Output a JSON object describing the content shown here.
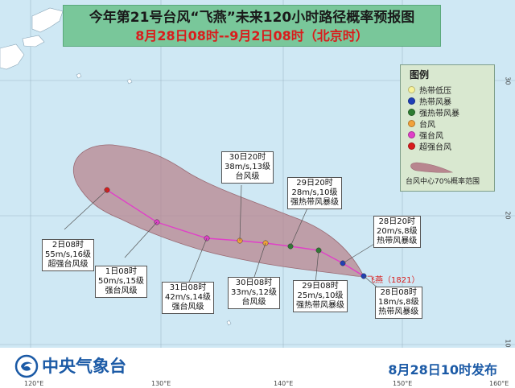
{
  "title": {
    "line1": "今年第21号台风“飞燕”未来120小时路径概率预报图",
    "line2": "8月28日08时--9月2日08时（北京时）"
  },
  "legend": {
    "title": "图例",
    "items": [
      {
        "label": "热带低压",
        "color": "#f7f29a"
      },
      {
        "label": "热带风暴",
        "color": "#1f3fb8"
      },
      {
        "label": "强热带风暴",
        "color": "#2e7d32"
      },
      {
        "label": "台风",
        "color": "#f2a23a"
      },
      {
        "label": "强台风",
        "color": "#e040c8"
      },
      {
        "label": "超强台风",
        "color": "#d91c1c"
      }
    ],
    "probability_label": "台风中心70%概率范围",
    "probability_color": "#b8868f"
  },
  "typhoon": {
    "name": "飞燕（1821）",
    "track_color": "#e040c8"
  },
  "forecast_points": [
    {
      "time": "28日08时",
      "speed": "18m/s,8级",
      "category": "热带风暴级",
      "color": "#1f3fb8"
    },
    {
      "time": "28日20时",
      "speed": "20m/s,8级",
      "category": "热带风暴级",
      "color": "#1f3fb8"
    },
    {
      "time": "29日08时",
      "speed": "25m/s,10级",
      "category": "强热带风暴级",
      "color": "#2e7d32"
    },
    {
      "time": "29日20时",
      "speed": "28m/s,10级",
      "category": "强热带风暴级",
      "color": "#2e7d32"
    },
    {
      "time": "30日08时",
      "speed": "33m/s,12级",
      "category": "台风级",
      "color": "#f2a23a"
    },
    {
      "time": "30日20时",
      "speed": "38m/s,13级",
      "category": "台风级",
      "color": "#f2a23a"
    },
    {
      "time": "31日08时",
      "speed": "42m/s,14级",
      "category": "强台风级",
      "color": "#e040c8"
    },
    {
      "time": "1日08时",
      "speed": "50m/s,15级",
      "category": "强台风级",
      "color": "#e040c8"
    },
    {
      "time": "2日08时",
      "speed": "55m/s,16级",
      "category": "超强台风级",
      "color": "#d91c1c"
    }
  ],
  "axes": {
    "latitudes": [
      "30",
      "20",
      "10"
    ],
    "longitudes": [
      "120°E",
      "130°E",
      "140°E",
      "150°E",
      "160°E"
    ]
  },
  "footer": {
    "organization": "中央气象台",
    "issue_time": "8月28日10时发布"
  },
  "colors": {
    "sea": "#cfe8f4",
    "land": "#ffffff",
    "probability_fill": "#b8868f",
    "title_bg": "#79c79a"
  }
}
